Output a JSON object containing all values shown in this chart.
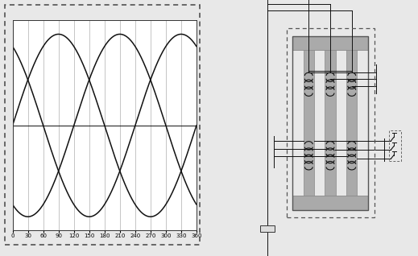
{
  "bg_color": "#e8e8e8",
  "panel_bg": "#ffffff",
  "sine_color": "#111111",
  "grid_color": "#bbbbbb",
  "dash_border_color": "#555555",
  "x_ticks": [
    0,
    30,
    60,
    90,
    120,
    150,
    180,
    210,
    240,
    270,
    300,
    330,
    360
  ],
  "x_tick_labels": [
    "0",
    "30",
    "60",
    "90",
    "120",
    "150",
    "180",
    "210",
    "240",
    "270",
    "300",
    "330",
    "360"
  ],
  "phase_offsets_deg": [
    0,
    120,
    240
  ],
  "amplitude": 1.0,
  "figsize": [
    5.19,
    3.18
  ],
  "dpi": 100
}
